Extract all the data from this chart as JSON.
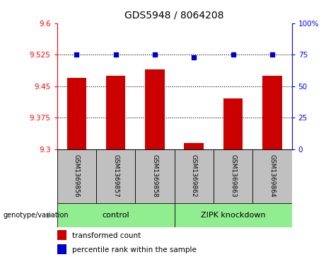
{
  "title": "GDS5948 / 8064208",
  "samples": [
    "GSM1369856",
    "GSM1369857",
    "GSM1369858",
    "GSM1369862",
    "GSM1369863",
    "GSM1369864"
  ],
  "red_values": [
    9.47,
    9.475,
    9.49,
    9.315,
    9.42,
    9.475
  ],
  "blue_percentiles": [
    75.0,
    75.0,
    75.0,
    73.0,
    75.0,
    75.0
  ],
  "ylim_left": [
    9.3,
    9.6
  ],
  "ylim_right": [
    0,
    100
  ],
  "yticks_left": [
    9.3,
    9.375,
    9.45,
    9.525,
    9.6
  ],
  "ytick_labels_left": [
    "9.3",
    "9.375",
    "9.45",
    "9.525",
    "9.6"
  ],
  "yticks_right": [
    0,
    25,
    50,
    75,
    100
  ],
  "ytick_labels_right": [
    "0",
    "25",
    "50",
    "75",
    "100%"
  ],
  "group_label_prefix": "genotype/variation",
  "bar_color": "#CC0000",
  "dot_color": "#0000CC",
  "bar_width": 0.5,
  "sample_box_color": "#C0C0C0",
  "group_colors": [
    "#90EE90",
    "#90EE90"
  ],
  "group_labels": [
    "control",
    "ZIPK knockdown"
  ],
  "group_ranges": [
    [
      0,
      2
    ],
    [
      3,
      5
    ]
  ],
  "legend_red_label": "transformed count",
  "legend_blue_label": "percentile rank within the sample",
  "legend_red_color": "#CC0000",
  "legend_blue_color": "#0000CC"
}
